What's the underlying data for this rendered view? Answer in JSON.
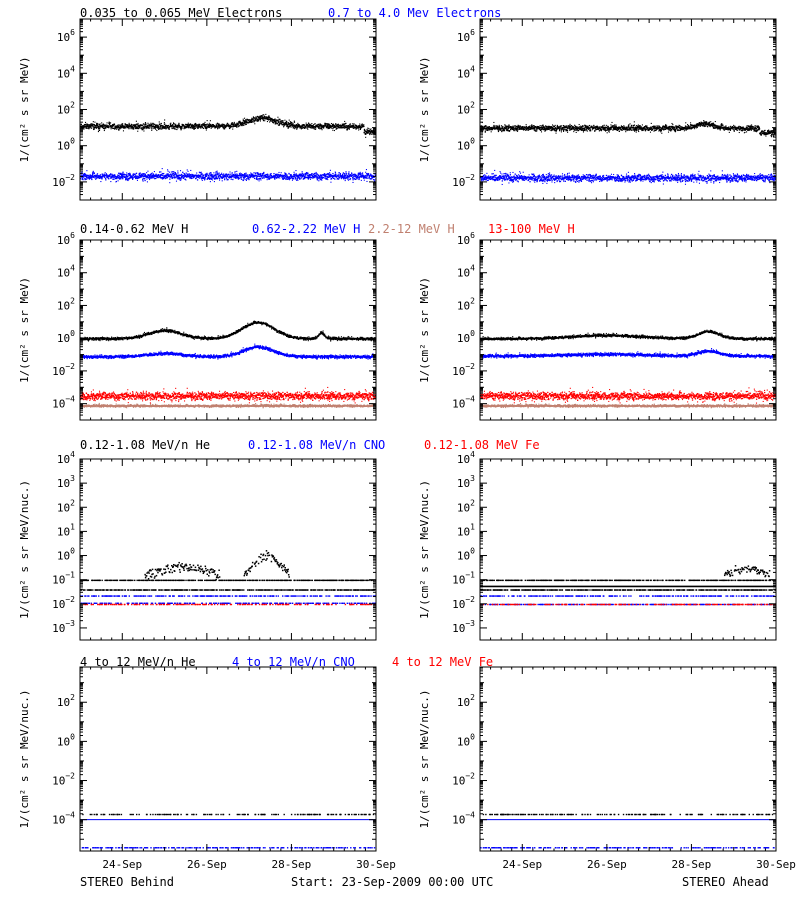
{
  "footer": {
    "left": "STEREO Behind",
    "center": "Start: 23-Sep-2009 00:00 UTC",
    "right": "STEREO Ahead"
  },
  "chart_data": {
    "type": "scatter",
    "x_range_days": [
      23.0,
      30.0
    ],
    "x_ticks": [
      {
        "x": 24,
        "label": "24-Sep"
      },
      {
        "x": 26,
        "label": "26-Sep"
      },
      {
        "x": 28,
        "label": "28-Sep"
      },
      {
        "x": 30,
        "label": "30-Sep"
      }
    ],
    "rows": [
      {
        "legend": [
          {
            "text": "0.035 to 0.065 MeV Electrons",
            "color": "#000000"
          },
          {
            "text": "0.7 to 4.0 Mev Electrons",
            "color": "#0000ff"
          }
        ],
        "ylabel": "1/(cm² s sr MeV)",
        "yscale": "log",
        "yrange_exp": [
          -3,
          7
        ],
        "ytick_exps": [
          -2,
          0,
          2,
          4,
          6
        ],
        "panels": [
          {
            "spacecraft": "STEREO Behind",
            "series": [
              {
                "color": "#000000",
                "base_log": 1.1,
                "scatter": 0.12,
                "bumps": [
                  [
                    27.3,
                    0.45,
                    0.5
                  ]
                ],
                "drop_after": 29.7,
                "drop": 0.3
              },
              {
                "color": "#0000ff",
                "base_log": -1.65,
                "scatter": 0.15
              }
            ]
          },
          {
            "spacecraft": "STEREO Ahead",
            "series": [
              {
                "color": "#000000",
                "base_log": 1.0,
                "scatter": 0.12,
                "bumps": [
                  [
                    28.3,
                    0.25,
                    0.3
                  ]
                ],
                "drop_after": 29.6,
                "drop": 0.25
              },
              {
                "color": "#0000ff",
                "base_log": -1.75,
                "scatter": 0.15
              }
            ]
          }
        ]
      },
      {
        "legend": [
          {
            "text": "0.14-0.62 MeV H",
            "color": "#000000"
          },
          {
            "text": "0.62-2.22 MeV H",
            "color": "#0000ff"
          },
          {
            "text": "2.2-12 MeV H",
            "color": "#c08070"
          },
          {
            "text": "13-100 MeV H",
            "color": "#ff0000"
          }
        ],
        "ylabel": "1/(cm² s sr MeV)",
        "yscale": "log",
        "yrange_exp": [
          -5,
          6
        ],
        "ytick_exps": [
          -4,
          -2,
          0,
          2,
          4,
          6
        ],
        "panels": [
          {
            "spacecraft": "STEREO Behind",
            "series": [
              {
                "color": "#000000",
                "base_log": 0.0,
                "scatter": 0.06,
                "bumps": [
                  [
                    25.0,
                    0.5,
                    0.55
                  ],
                  [
                    27.2,
                    1.0,
                    0.55
                  ],
                  [
                    28.7,
                    0.35,
                    0.1
                  ]
                ]
              },
              {
                "color": "#0000ff",
                "base_log": -1.1,
                "scatter": 0.07,
                "bumps": [
                  [
                    25.0,
                    0.2,
                    0.6
                  ],
                  [
                    27.2,
                    0.6,
                    0.5
                  ]
                ]
              },
              {
                "color": "#c08070",
                "base_log": -4.1,
                "scatter": 0.05
              },
              {
                "color": "#ff0000",
                "base_log": -3.5,
                "scatter": 0.18
              }
            ]
          },
          {
            "spacecraft": "STEREO Ahead",
            "series": [
              {
                "color": "#000000",
                "base_log": 0.0,
                "scatter": 0.06,
                "bumps": [
                  [
                    26.0,
                    0.2,
                    1.2
                  ],
                  [
                    28.4,
                    0.45,
                    0.35
                  ]
                ]
              },
              {
                "color": "#0000ff",
                "base_log": -1.05,
                "scatter": 0.07,
                "bumps": [
                  [
                    26.0,
                    0.1,
                    1.2
                  ],
                  [
                    28.4,
                    0.3,
                    0.35
                  ]
                ]
              },
              {
                "color": "#c08070",
                "base_log": -4.1,
                "scatter": 0.05
              },
              {
                "color": "#ff0000",
                "base_log": -3.5,
                "scatter": 0.18
              }
            ]
          }
        ]
      },
      {
        "legend": [
          {
            "text": "0.12-1.08 MeV/n He",
            "color": "#000000"
          },
          {
            "text": "0.12-1.08 MeV/n CNO",
            "color": "#0000ff"
          },
          {
            "text": "0.12-1.08 MeV Fe",
            "color": "#ff0000"
          }
        ],
        "ylabel": "1/(cm² s sr MeV/nuc.)",
        "yscale": "log",
        "yrange_exp": [
          -3.5,
          4
        ],
        "ytick_exps": [
          -3,
          -2,
          -1,
          0,
          1,
          2,
          3,
          4
        ],
        "panels": [
          {
            "spacecraft": "STEREO Behind",
            "series": [
              {
                "color": "#000000",
                "kind": "levels",
                "levels": [
                  -1.0,
                  -1.4
                ],
                "bumps": [
                  [
                    25.4,
                    0.55,
                    1.0
                  ],
                  [
                    27.4,
                    1.05,
                    0.45
                  ]
                ],
                "bump_scatter": 0.18
              },
              {
                "color": "#0000ff",
                "kind": "sparse",
                "levels": [
                  -1.65,
                  -1.95
                ],
                "density": 0.35
              },
              {
                "color": "#ff0000",
                "kind": "sparse",
                "levels": [
                  -2.0
                ],
                "density": 0.3
              }
            ]
          },
          {
            "spacecraft": "STEREO Ahead",
            "series": [
              {
                "color": "#000000",
                "kind": "levels",
                "levels": [
                  -1.0,
                  -1.4
                ],
                "solid_level": -1.28,
                "bumps": [
                  [
                    29.3,
                    0.45,
                    0.7
                  ]
                ],
                "bump_scatter": 0.15
              },
              {
                "color": "#0000ff",
                "kind": "sparse",
                "levels": [
                  -1.65,
                  -2.0
                ],
                "density": 0.35
              },
              {
                "color": "#ff0000",
                "kind": "sparse",
                "levels": [
                  -2.0
                ],
                "density": 0.3
              }
            ]
          }
        ]
      },
      {
        "legend": [
          {
            "text": "4 to 12 MeV/n He",
            "color": "#000000"
          },
          {
            "text": "4 to 12 MeV/n CNO",
            "color": "#0000ff"
          },
          {
            "text": "4 to 12 MeV Fe",
            "color": "#ff0000"
          }
        ],
        "ylabel": "1/(cm² s sr MeV/nuc.)",
        "yscale": "log",
        "yrange_exp": [
          -5.6,
          3.8
        ],
        "ytick_exps": [
          -4,
          -2,
          0,
          2
        ],
        "panels": [
          {
            "spacecraft": "STEREO Behind",
            "series": [
              {
                "color": "#000000",
                "kind": "sparse",
                "levels": [
                  -3.7
                ],
                "density": 0.25
              },
              {
                "color": "#0000ff",
                "kind": "hline",
                "level": -4.0
              },
              {
                "color": "#0000ff",
                "kind": "sparse",
                "levels": [
                  -5.4
                ],
                "density": 0.3
              }
            ]
          },
          {
            "spacecraft": "STEREO Ahead",
            "series": [
              {
                "color": "#000000",
                "kind": "sparse",
                "levels": [
                  -3.7
                ],
                "density": 0.25
              },
              {
                "color": "#0000ff",
                "kind": "hline",
                "level": -4.0
              },
              {
                "color": "#0000ff",
                "kind": "sparse",
                "levels": [
                  -5.4
                ],
                "density": 0.3
              }
            ]
          }
        ]
      }
    ]
  }
}
